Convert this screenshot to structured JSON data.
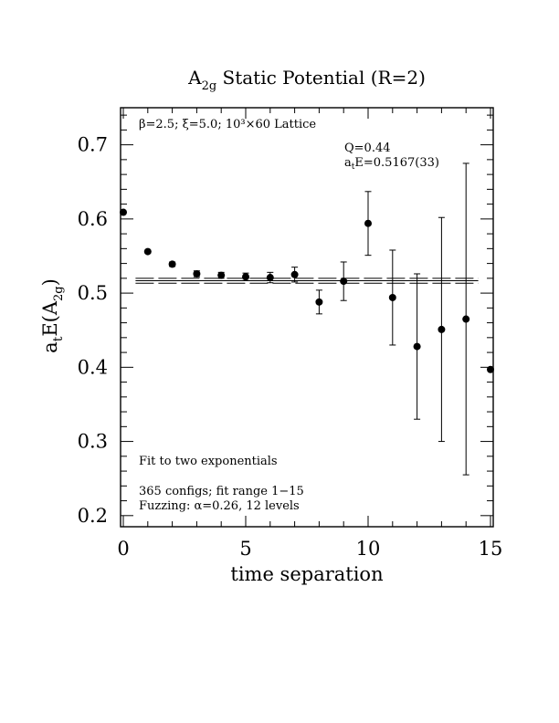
{
  "chart_data": {
    "type": "scatter",
    "title_main": "A",
    "title_sub": "2g",
    "title_rest": " Static Potential (R=2)",
    "xlabel": "time separation",
    "ylabel_a": "a",
    "ylabel_t": "t",
    "ylabel_E": "E(A",
    "ylabel_sub": "2g",
    "ylabel_close": ")",
    "xlim": [
      0,
      15
    ],
    "ylim": [
      0.185,
      0.75
    ],
    "xticks": [
      0,
      5,
      10,
      15
    ],
    "xtick_labels": [
      "0",
      "5",
      "10",
      "15"
    ],
    "yticks": [
      0.2,
      0.3,
      0.4,
      0.5,
      0.6,
      0.7
    ],
    "ytick_labels": [
      "0.2",
      "0.3",
      "0.4",
      "0.5",
      "0.6",
      "0.7"
    ],
    "x_minor_step": 1,
    "y_minor_step": 0.02,
    "fit": {
      "value": 0.5167,
      "error": 0.0033,
      "x_start": 0.5,
      "x_end": 14.5
    },
    "points": [
      {
        "x": 0,
        "y": 0.609,
        "err": 0.002
      },
      {
        "x": 1,
        "y": 0.556,
        "err": 0.002
      },
      {
        "x": 2,
        "y": 0.539,
        "err": 0.003
      },
      {
        "x": 3,
        "y": 0.526,
        "err": 0.004
      },
      {
        "x": 4,
        "y": 0.524,
        "err": 0.004
      },
      {
        "x": 5,
        "y": 0.522,
        "err": 0.005
      },
      {
        "x": 6,
        "y": 0.521,
        "err": 0.007
      },
      {
        "x": 7,
        "y": 0.525,
        "err": 0.01
      },
      {
        "x": 8,
        "y": 0.488,
        "err": 0.016
      },
      {
        "x": 9,
        "y": 0.516,
        "err": 0.026
      },
      {
        "x": 10,
        "y": 0.594,
        "err": 0.043
      },
      {
        "x": 11,
        "y": 0.494,
        "err": 0.064
      },
      {
        "x": 12,
        "y": 0.428,
        "err": 0.098
      },
      {
        "x": 13,
        "y": 0.451,
        "err": 0.151
      },
      {
        "x": 14,
        "y": 0.465,
        "err": 0.21
      },
      {
        "x": 15,
        "y": 0.397,
        "err": 0.0
      }
    ],
    "annotations": {
      "lattice": "β=2.5; ξ=5.0; 10³×60 Lattice",
      "q_value": "Q=0.44",
      "energy_a": "a",
      "energy_t": "t",
      "energy_rest": "E=0.5167(33)",
      "fit_type": "Fit to two exponentials",
      "configs": "365 configs; fit range 1−15",
      "fuzzing": "Fuzzing: α=0.26, 12 levels"
    }
  }
}
